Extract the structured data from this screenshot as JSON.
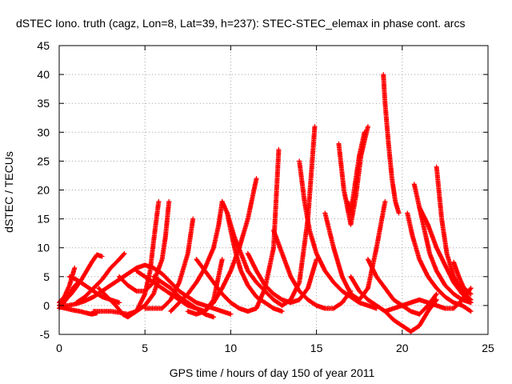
{
  "chart_data": {
    "type": "scatter",
    "title": "dSTEC Iono. truth (cagz, Lon=8, Lat=39, h=237): STEC-STEC_elemax in phase cont. arcs",
    "xlabel": "GPS time / hours of day 150 of year 2011",
    "ylabel": "dSTEC  / TECUs",
    "xlim": [
      0,
      25
    ],
    "ylim": [
      -5,
      45
    ],
    "x_ticks": [
      "0",
      "5",
      "10",
      "15",
      "20",
      "25"
    ],
    "y_ticks": [
      "-5",
      "0",
      "5",
      "10",
      "15",
      "20",
      "25",
      "30",
      "35",
      "40",
      "45"
    ],
    "grid": true,
    "legend": "none",
    "marker": "plus",
    "color": "#ff0000",
    "arcs": [
      {
        "x": [
          0.0,
          0.3,
          0.6,
          0.8,
          0.9
        ],
        "y": [
          0.5,
          1.5,
          3.5,
          5.5,
          6.5
        ]
      },
      {
        "x": [
          0.1,
          0.4,
          0.8,
          1.2,
          1.6,
          1.9,
          2.2
        ],
        "y": [
          -0.3,
          -0.5,
          -0.8,
          -1.0,
          -1.3,
          -1.5,
          -1.3
        ]
      },
      {
        "x": [
          0.0,
          0.3,
          0.7,
          1.0,
          1.3,
          1.6,
          1.9,
          2.2,
          2.5
        ],
        "y": [
          0.0,
          0.8,
          2.0,
          3.2,
          4.5,
          6.0,
          7.5,
          8.8,
          8.5
        ]
      },
      {
        "x": [
          0.0,
          0.4,
          0.8,
          1.1
        ],
        "y": [
          -0.5,
          1.0,
          3.0,
          4.0
        ]
      },
      {
        "x": [
          0.6,
          1.0,
          1.5,
          2.0,
          2.5,
          3.0,
          3.5
        ],
        "y": [
          5.0,
          4.5,
          3.5,
          2.5,
          1.5,
          1.0,
          0.5
        ]
      },
      {
        "x": [
          1.0,
          1.5,
          2.0,
          2.5,
          3.0,
          3.5,
          3.8
        ],
        "y": [
          0.5,
          1.5,
          3.0,
          4.5,
          6.5,
          8.0,
          9.0
        ]
      },
      {
        "x": [
          0.0,
          0.5,
          1.0,
          1.5,
          2.0,
          2.5,
          3.0,
          3.5,
          4.0,
          4.5,
          5.0,
          5.5,
          6.0,
          6.5,
          7.0,
          7.5,
          8.0,
          8.5,
          9.0,
          9.5,
          10.0
        ],
        "y": [
          0.0,
          0.0,
          0.3,
          0.8,
          1.5,
          2.5,
          3.5,
          4.5,
          5.5,
          6.5,
          7.0,
          6.5,
          5.5,
          4.0,
          2.5,
          1.5,
          0.5,
          0.0,
          -0.5,
          -1.0,
          -1.5
        ]
      },
      {
        "x": [
          2.0,
          2.5,
          3.0,
          3.5,
          4.0,
          4.5,
          5.0,
          5.5,
          5.8
        ],
        "y": [
          -1.0,
          -1.0,
          -1.0,
          -1.2,
          -1.5,
          -1.0,
          0.0,
          2.0,
          4.5
        ]
      },
      {
        "x": [
          2.3,
          2.8,
          3.3,
          3.7,
          4.0,
          4.5,
          5.0,
          5.3,
          5.5,
          5.8
        ],
        "y": [
          3.0,
          1.5,
          0.0,
          -1.5,
          -2.0,
          -1.0,
          2.0,
          6.0,
          11.0,
          18.0
        ]
      },
      {
        "x": [
          3.5,
          4.0,
          4.5,
          5.0,
          5.5,
          6.0,
          6.2,
          6.4
        ],
        "y": [
          5.0,
          3.5,
          2.5,
          2.5,
          4.0,
          8.0,
          12.0,
          18.0
        ]
      },
      {
        "x": [
          4.5,
          5.0,
          5.5,
          6.0,
          6.5,
          7.0,
          7.5,
          8.0,
          8.5,
          9.0
        ],
        "y": [
          6.0,
          5.0,
          4.0,
          3.0,
          2.0,
          1.0,
          0.0,
          -0.5,
          -1.5,
          -2.0
        ]
      },
      {
        "x": [
          5.0,
          5.5,
          6.0,
          6.5,
          7.0,
          7.5,
          7.8
        ],
        "y": [
          -0.5,
          -0.5,
          -0.5,
          1.0,
          4.0,
          9.0,
          15.0
        ]
      },
      {
        "x": [
          5.5,
          6.0,
          6.5,
          7.0,
          7.5,
          8.0,
          8.5,
          9.0,
          9.5
        ],
        "y": [
          5.0,
          4.0,
          3.0,
          1.5,
          0.5,
          -0.5,
          -1.0,
          1.0,
          8.0
        ]
      },
      {
        "x": [
          6.5,
          7.0,
          7.5,
          8.0,
          8.5,
          9.0,
          9.3,
          9.5
        ],
        "y": [
          -1.0,
          0.5,
          2.0,
          4.0,
          6.5,
          10.0,
          14.0,
          18.0
        ]
      },
      {
        "x": [
          7.5,
          8.0,
          8.5,
          9.0,
          9.5,
          10.0,
          10.5,
          11.0,
          11.5
        ],
        "y": [
          -1.0,
          -1.5,
          -1.0,
          0.5,
          3.0,
          6.0,
          10.0,
          15.0,
          22.0
        ]
      },
      {
        "x": [
          8.0,
          8.5,
          9.0,
          9.5,
          10.0,
          10.5,
          11.0,
          11.5,
          12.0,
          12.5,
          12.8
        ],
        "y": [
          8.0,
          6.0,
          4.0,
          2.0,
          0.5,
          -0.5,
          -1.0,
          -0.5,
          3.0,
          10.0,
          27.0
        ]
      },
      {
        "x": [
          9.5,
          9.8,
          10.0,
          10.3,
          10.6,
          11.0,
          11.5,
          12.0,
          12.5,
          13.0
        ],
        "y": [
          18.0,
          16.0,
          13.0,
          9.0,
          6.0,
          3.5,
          1.5,
          0.5,
          -0.5,
          -1.0
        ]
      },
      {
        "x": [
          9.8,
          10.2,
          10.6,
          11.0,
          11.5,
          12.0,
          12.5,
          13.0,
          13.5,
          14.0,
          14.5,
          14.9
        ],
        "y": [
          16.0,
          12.0,
          9.0,
          6.0,
          4.0,
          2.5,
          1.0,
          0.0,
          1.0,
          4.0,
          15.0,
          31.0
        ]
      },
      {
        "x": [
          11.0,
          11.5,
          12.0,
          12.5,
          13.0,
          13.5,
          14.0,
          14.5,
          15.0
        ],
        "y": [
          9.0,
          6.0,
          3.5,
          2.0,
          1.0,
          0.5,
          1.0,
          3.0,
          8.0
        ]
      },
      {
        "x": [
          12.5,
          13.0,
          13.5,
          14.0,
          14.5,
          15.0,
          15.5,
          16.0,
          16.5,
          17.0
        ],
        "y": [
          13.0,
          9.0,
          5.0,
          2.5,
          1.0,
          0.0,
          -0.5,
          -0.5,
          0.5,
          2.5
        ]
      },
      {
        "x": [
          14.0,
          14.3,
          14.6,
          15.0,
          15.5,
          16.0,
          16.5,
          17.0,
          17.5,
          18.0,
          18.5
        ],
        "y": [
          25.0,
          18.0,
          13.0,
          9.0,
          6.0,
          4.0,
          2.5,
          1.5,
          0.5,
          0.0,
          -0.5
        ]
      },
      {
        "x": [
          15.5,
          16.0,
          16.5,
          17.0,
          17.5,
          18.0,
          18.5,
          19.0
        ],
        "y": [
          16.0,
          10.0,
          5.0,
          2.0,
          1.0,
          3.0,
          10.0,
          18.0
        ]
      },
      {
        "x": [
          16.3,
          16.6,
          17.0,
          17.3,
          17.6,
          18.0
        ],
        "y": [
          28.0,
          20.0,
          14.0,
          19.0,
          26.0,
          31.0
        ]
      },
      {
        "x": [
          16.8,
          17.0,
          17.2,
          17.5,
          17.8
        ],
        "y": [
          18.0,
          16.0,
          20.0,
          26.0,
          30.0
        ]
      },
      {
        "x": [
          17.0,
          17.5,
          18.0,
          18.5,
          19.0,
          19.5,
          20.0,
          20.5,
          21.0,
          21.5,
          22.0
        ],
        "y": [
          5.0,
          2.5,
          1.0,
          0.0,
          -1.0,
          -2.5,
          -3.5,
          -4.5,
          -3.5,
          -1.0,
          1.0
        ]
      },
      {
        "x": [
          18.9,
          19.0,
          19.2,
          19.4,
          19.6,
          19.8
        ],
        "y": [
          40.0,
          35.0,
          28.0,
          22.0,
          18.0,
          16.0
        ]
      },
      {
        "x": [
          18.0,
          18.5,
          19.0,
          19.5,
          20.0,
          20.5,
          21.0,
          21.5,
          22.0
        ],
        "y": [
          8.0,
          5.0,
          3.0,
          1.0,
          0.0,
          -1.0,
          -1.5,
          0.0,
          2.0
        ]
      },
      {
        "x": [
          20.3,
          20.6,
          21.0,
          21.5,
          22.0,
          22.5,
          23.0,
          23.5,
          24.0
        ],
        "y": [
          16.0,
          12.0,
          8.0,
          5.0,
          3.0,
          1.5,
          0.5,
          0.0,
          -1.0
        ]
      },
      {
        "x": [
          20.7,
          21.0,
          21.3,
          21.6,
          22.0,
          22.5,
          23.0,
          23.5,
          24.0
        ],
        "y": [
          21.0,
          17.0,
          13.0,
          9.0,
          6.0,
          3.5,
          2.0,
          1.0,
          0.5
        ]
      },
      {
        "x": [
          21.0,
          21.5,
          22.0,
          22.5,
          23.0,
          23.5,
          24.0
        ],
        "y": [
          17.0,
          14.0,
          10.0,
          7.0,
          4.0,
          2.0,
          0.5
        ]
      },
      {
        "x": [
          22.0,
          22.3,
          22.6,
          23.0,
          23.5,
          24.0
        ],
        "y": [
          24.0,
          15.0,
          9.0,
          5.0,
          2.5,
          1.0
        ]
      },
      {
        "x": [
          19.0,
          19.5,
          20.0,
          20.5,
          21.0,
          21.5,
          22.0,
          22.5,
          23.0,
          23.5,
          24.0
        ],
        "y": [
          -1.0,
          -0.5,
          0.0,
          0.5,
          1.0,
          0.5,
          0.0,
          -0.5,
          -0.5,
          1.0,
          3.0
        ]
      },
      {
        "x": [
          23.0,
          23.3,
          23.6,
          24.0
        ],
        "y": [
          7.5,
          5.0,
          3.0,
          2.0
        ]
      }
    ]
  }
}
